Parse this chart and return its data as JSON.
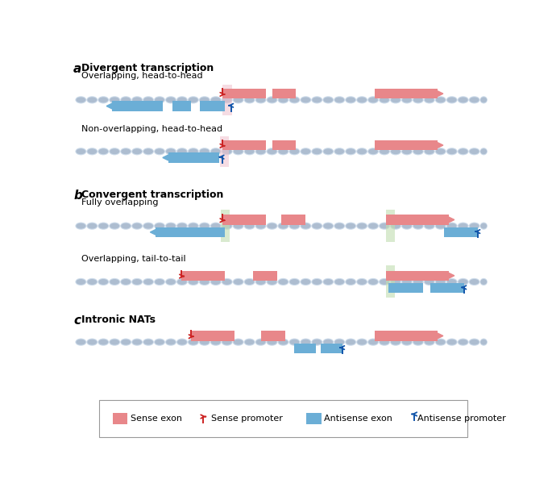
{
  "sense_color": "#E8878A",
  "antisense_color": "#6BAED6",
  "dna_light": "#C8D8E8",
  "dna_dark": "#A8B8CC",
  "overlap_pink": "#F0C0CC",
  "overlap_green": "#C0DDB0",
  "sense_promoter_color": "#CC2222",
  "antisense_promoter_color": "#1155AA",
  "bg_color": "#FFFFFF",
  "section_a_title": "Divergent transcription",
  "section_b_title": "Convergent transcription",
  "section_c_title": "Intronic NATs",
  "sub_a1": "Overlapping, head-to-head",
  "sub_a2": "Non-overlapping, head-to-head",
  "sub_b1": "Fully overlapping",
  "sub_b2": "Overlapping, tail-to-tail"
}
